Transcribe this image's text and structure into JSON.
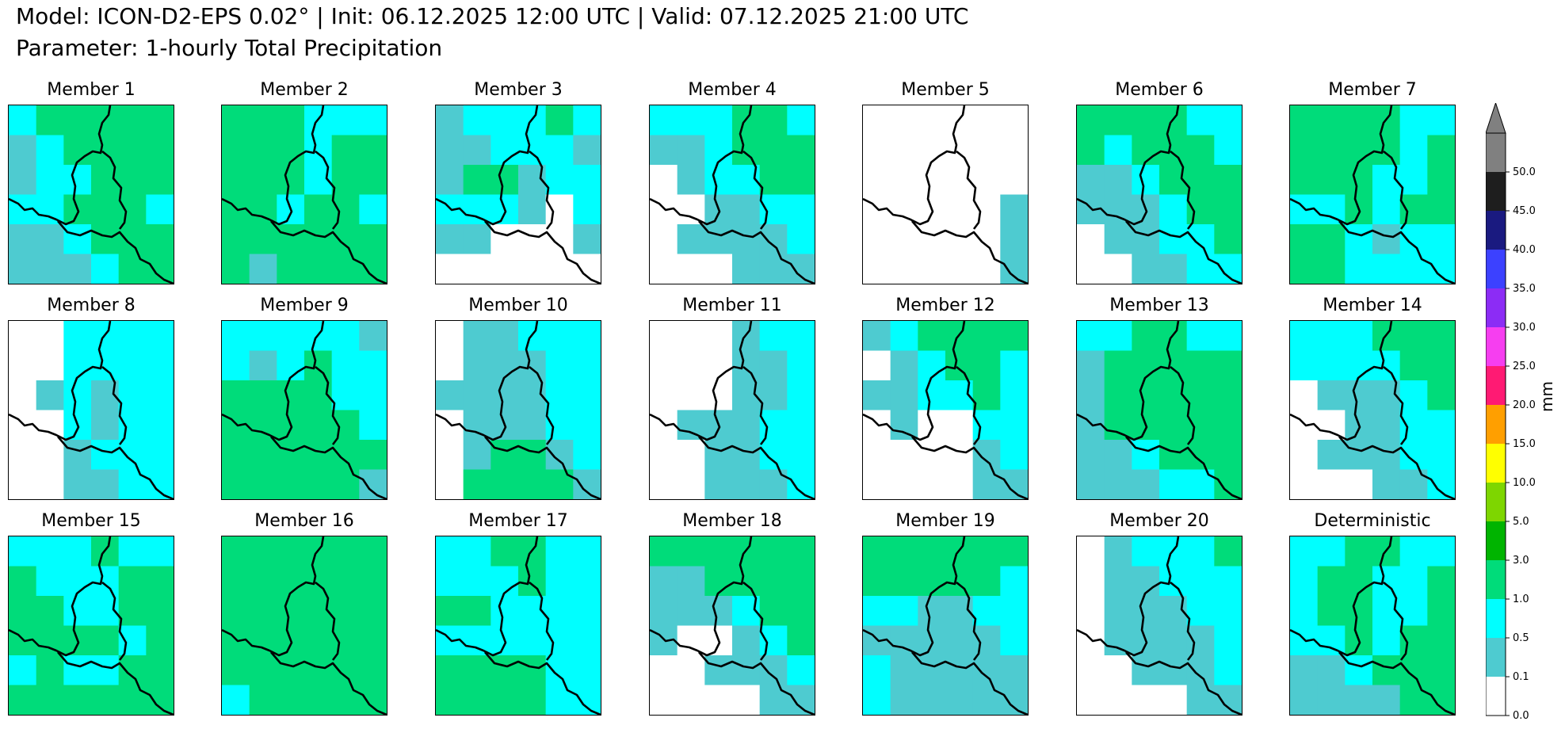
{
  "header": {
    "title_line1": "Model: ICON-D2-EPS 0.02° | Init: 06.12.2025 12:00 UTC | Valid: 07.12.2025 21:00 UTC",
    "title_line2": "Parameter: 1-hourly Total Precipitation"
  },
  "chart_data": {
    "type": "heatmap",
    "title": "Model: ICON-D2-EPS 0.02° | Init: 06.12.2025 12:00 UTC | Valid: 07.12.2025 21:00 UTC",
    "subtitle": "Parameter: 1-hourly Total Precipitation",
    "panels": [
      {
        "label": "Member 1",
        "levels": [
          [
            2,
            3,
            3,
            3,
            3,
            3
          ],
          [
            1,
            2,
            3,
            3,
            3,
            3
          ],
          [
            1,
            2,
            2,
            3,
            3,
            3
          ],
          [
            2,
            2,
            3,
            3,
            3,
            2
          ],
          [
            1,
            1,
            2,
            3,
            3,
            3
          ],
          [
            1,
            1,
            1,
            2,
            3,
            3
          ]
        ]
      },
      {
        "label": "Member 2",
        "levels": [
          [
            3,
            3,
            3,
            2,
            2,
            2
          ],
          [
            3,
            3,
            3,
            2,
            3,
            3
          ],
          [
            3,
            3,
            3,
            2,
            3,
            3
          ],
          [
            3,
            3,
            2,
            3,
            3,
            2
          ],
          [
            3,
            3,
            3,
            3,
            3,
            3
          ],
          [
            3,
            1,
            3,
            3,
            3,
            3
          ]
        ]
      },
      {
        "label": "Member 3",
        "levels": [
          [
            1,
            2,
            2,
            2,
            3,
            2
          ],
          [
            1,
            1,
            2,
            2,
            2,
            1
          ],
          [
            1,
            3,
            3,
            1,
            2,
            2
          ],
          [
            2,
            2,
            2,
            1,
            0,
            2
          ],
          [
            1,
            1,
            0,
            0,
            0,
            1
          ],
          [
            0,
            0,
            0,
            0,
            0,
            0
          ]
        ]
      },
      {
        "label": "Member 4",
        "levels": [
          [
            2,
            2,
            2,
            3,
            3,
            2
          ],
          [
            1,
            1,
            2,
            3,
            3,
            3
          ],
          [
            0,
            1,
            2,
            2,
            3,
            3
          ],
          [
            0,
            0,
            1,
            1,
            2,
            2
          ],
          [
            0,
            1,
            1,
            1,
            1,
            2
          ],
          [
            0,
            0,
            0,
            1,
            1,
            1
          ]
        ]
      },
      {
        "label": "Member 5",
        "levels": [
          [
            0,
            0,
            0,
            0,
            0,
            0
          ],
          [
            0,
            0,
            0,
            0,
            0,
            0
          ],
          [
            0,
            0,
            0,
            0,
            0,
            0
          ],
          [
            0,
            0,
            0,
            0,
            0,
            1
          ],
          [
            0,
            0,
            0,
            0,
            0,
            1
          ],
          [
            0,
            0,
            0,
            0,
            0,
            1
          ]
        ]
      },
      {
        "label": "Member 6",
        "levels": [
          [
            3,
            3,
            3,
            3,
            2,
            2
          ],
          [
            3,
            2,
            3,
            3,
            3,
            2
          ],
          [
            1,
            1,
            2,
            3,
            3,
            3
          ],
          [
            1,
            1,
            1,
            2,
            3,
            3
          ],
          [
            0,
            1,
            1,
            2,
            2,
            3
          ],
          [
            0,
            0,
            1,
            1,
            2,
            2
          ]
        ]
      },
      {
        "label": "Member 7",
        "levels": [
          [
            3,
            3,
            3,
            3,
            2,
            2
          ],
          [
            3,
            3,
            3,
            3,
            2,
            3
          ],
          [
            3,
            3,
            3,
            2,
            2,
            3
          ],
          [
            2,
            2,
            3,
            2,
            3,
            3
          ],
          [
            3,
            3,
            2,
            1,
            2,
            2
          ],
          [
            3,
            3,
            2,
            2,
            2,
            2
          ]
        ]
      },
      {
        "label": "Member 8",
        "levels": [
          [
            0,
            0,
            2,
            2,
            2,
            2
          ],
          [
            0,
            0,
            2,
            2,
            2,
            2
          ],
          [
            0,
            1,
            2,
            1,
            2,
            2
          ],
          [
            0,
            0,
            2,
            1,
            2,
            2
          ],
          [
            0,
            0,
            1,
            2,
            2,
            2
          ],
          [
            0,
            0,
            1,
            1,
            2,
            2
          ]
        ]
      },
      {
        "label": "Member 9",
        "levels": [
          [
            2,
            2,
            2,
            2,
            2,
            1
          ],
          [
            2,
            1,
            2,
            3,
            2,
            2
          ],
          [
            3,
            3,
            3,
            3,
            2,
            2
          ],
          [
            3,
            3,
            3,
            3,
            3,
            2
          ],
          [
            3,
            3,
            3,
            3,
            3,
            3
          ],
          [
            3,
            3,
            3,
            3,
            3,
            1
          ]
        ]
      },
      {
        "label": "Member 10",
        "levels": [
          [
            0,
            1,
            1,
            2,
            2,
            2
          ],
          [
            0,
            1,
            1,
            1,
            2,
            2
          ],
          [
            1,
            1,
            1,
            1,
            2,
            2
          ],
          [
            0,
            1,
            1,
            1,
            2,
            2
          ],
          [
            0,
            1,
            3,
            3,
            1,
            2
          ],
          [
            0,
            3,
            3,
            3,
            3,
            1
          ]
        ]
      },
      {
        "label": "Member 11",
        "levels": [
          [
            0,
            0,
            0,
            1,
            2,
            2
          ],
          [
            0,
            0,
            0,
            1,
            1,
            2
          ],
          [
            0,
            0,
            0,
            1,
            1,
            2
          ],
          [
            0,
            1,
            1,
            1,
            2,
            2
          ],
          [
            0,
            0,
            1,
            1,
            2,
            2
          ],
          [
            0,
            0,
            1,
            1,
            1,
            2
          ]
        ]
      },
      {
        "label": "Member 12",
        "levels": [
          [
            1,
            2,
            3,
            3,
            3,
            3
          ],
          [
            0,
            1,
            2,
            3,
            3,
            2
          ],
          [
            1,
            1,
            2,
            2,
            3,
            2
          ],
          [
            0,
            1,
            0,
            0,
            2,
            2
          ],
          [
            0,
            0,
            0,
            0,
            1,
            2
          ],
          [
            0,
            0,
            0,
            0,
            1,
            1
          ]
        ]
      },
      {
        "label": "Member 13",
        "levels": [
          [
            2,
            2,
            3,
            3,
            2,
            2
          ],
          [
            1,
            3,
            3,
            3,
            3,
            3
          ],
          [
            1,
            3,
            3,
            3,
            3,
            3
          ],
          [
            1,
            3,
            3,
            3,
            3,
            3
          ],
          [
            1,
            1,
            2,
            3,
            3,
            3
          ],
          [
            1,
            1,
            1,
            2,
            2,
            3
          ]
        ]
      },
      {
        "label": "Member 14",
        "levels": [
          [
            2,
            2,
            2,
            3,
            3,
            3
          ],
          [
            2,
            2,
            2,
            2,
            3,
            3
          ],
          [
            0,
            1,
            1,
            1,
            2,
            3
          ],
          [
            0,
            0,
            1,
            1,
            2,
            2
          ],
          [
            0,
            1,
            1,
            1,
            2,
            2
          ],
          [
            0,
            0,
            0,
            1,
            1,
            2
          ]
        ]
      },
      {
        "label": "Member 15",
        "levels": [
          [
            2,
            2,
            2,
            3,
            2,
            2
          ],
          [
            3,
            2,
            2,
            2,
            3,
            3
          ],
          [
            3,
            3,
            2,
            2,
            3,
            3
          ],
          [
            3,
            3,
            3,
            3,
            2,
            3
          ],
          [
            2,
            3,
            2,
            2,
            3,
            3
          ],
          [
            3,
            3,
            3,
            3,
            3,
            3
          ]
        ]
      },
      {
        "label": "Member 16",
        "levels": [
          [
            3,
            3,
            3,
            3,
            3,
            3
          ],
          [
            3,
            3,
            3,
            3,
            3,
            3
          ],
          [
            3,
            3,
            3,
            3,
            3,
            3
          ],
          [
            3,
            3,
            3,
            3,
            3,
            3
          ],
          [
            3,
            3,
            3,
            3,
            3,
            3
          ],
          [
            2,
            3,
            3,
            3,
            3,
            3
          ]
        ]
      },
      {
        "label": "Member 17",
        "levels": [
          [
            2,
            2,
            3,
            3,
            2,
            2
          ],
          [
            2,
            2,
            2,
            3,
            2,
            2
          ],
          [
            3,
            3,
            2,
            2,
            2,
            2
          ],
          [
            2,
            2,
            2,
            2,
            2,
            2
          ],
          [
            3,
            3,
            3,
            3,
            2,
            2
          ],
          [
            3,
            3,
            3,
            3,
            2,
            2
          ]
        ]
      },
      {
        "label": "Member 18",
        "levels": [
          [
            3,
            3,
            3,
            3,
            3,
            3
          ],
          [
            1,
            1,
            3,
            3,
            3,
            3
          ],
          [
            1,
            1,
            1,
            2,
            3,
            3
          ],
          [
            1,
            0,
            0,
            1,
            2,
            3
          ],
          [
            0,
            0,
            1,
            1,
            1,
            2
          ],
          [
            0,
            0,
            0,
            0,
            1,
            1
          ]
        ]
      },
      {
        "label": "Member 19",
        "levels": [
          [
            3,
            3,
            3,
            3,
            3,
            3
          ],
          [
            3,
            3,
            3,
            3,
            3,
            2
          ],
          [
            2,
            2,
            1,
            1,
            2,
            2
          ],
          [
            1,
            1,
            1,
            1,
            1,
            2
          ],
          [
            2,
            1,
            1,
            1,
            1,
            1
          ],
          [
            2,
            1,
            1,
            1,
            1,
            1
          ]
        ]
      },
      {
        "label": "Member 20",
        "levels": [
          [
            0,
            1,
            2,
            2,
            2,
            3
          ],
          [
            0,
            1,
            1,
            2,
            2,
            2
          ],
          [
            0,
            1,
            1,
            1,
            2,
            2
          ],
          [
            0,
            1,
            1,
            1,
            1,
            2
          ],
          [
            0,
            0,
            1,
            1,
            1,
            2
          ],
          [
            0,
            0,
            0,
            0,
            1,
            1
          ]
        ]
      },
      {
        "label": "Deterministic",
        "levels": [
          [
            2,
            2,
            3,
            3,
            2,
            2
          ],
          [
            2,
            3,
            3,
            2,
            2,
            3
          ],
          [
            2,
            3,
            3,
            2,
            2,
            3
          ],
          [
            2,
            2,
            3,
            2,
            3,
            3
          ],
          [
            1,
            1,
            2,
            3,
            3,
            3
          ],
          [
            1,
            1,
            1,
            1,
            3,
            3
          ]
        ]
      }
    ],
    "colorbar": {
      "label": "mm",
      "ticks": [
        "0.0",
        "0.1",
        "0.5",
        "1.0",
        "3.0",
        "5.0",
        "10.0",
        "15.0",
        "20.0",
        "25.0",
        "30.0",
        "35.0",
        "40.0",
        "45.0",
        "50.0"
      ],
      "colors": [
        "#ffffff",
        "#4ecbd0",
        "#00ffff",
        "#00dc7a",
        "#00b400",
        "#7ed600",
        "#ffff00",
        "#ff9f00",
        "#ff1a73",
        "#f63ef0",
        "#8c2cf5",
        "#3c41ff",
        "#1a1a80",
        "#1e1e1e",
        "#808080"
      ],
      "extend": "max"
    }
  }
}
